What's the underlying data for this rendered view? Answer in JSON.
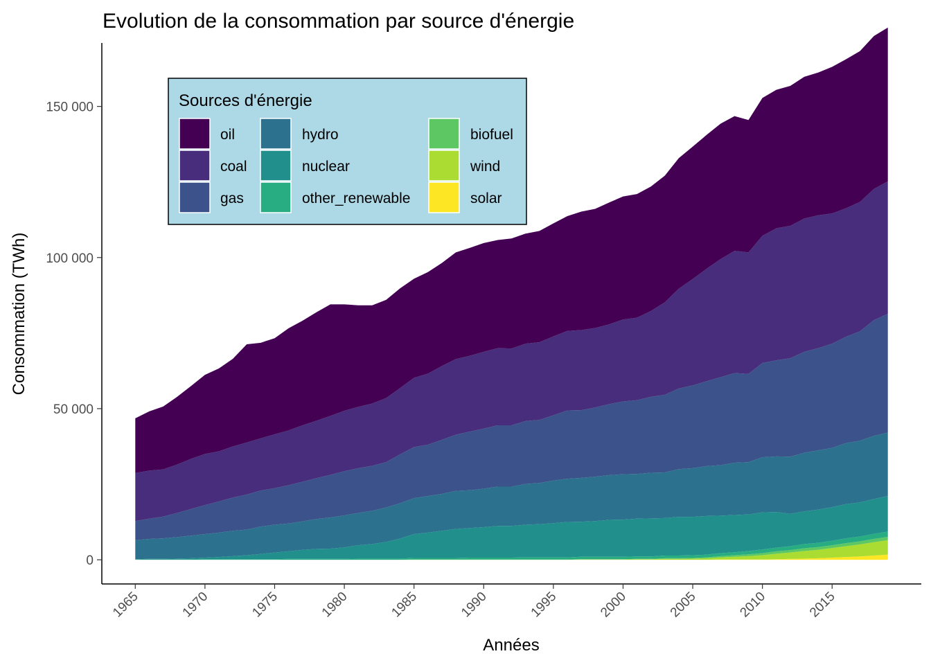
{
  "chart_data": {
    "type": "area",
    "stacked": true,
    "title": "Evolution de la consommation par source d'énergie",
    "xlabel": "Années",
    "ylabel": "Consommation (TWh)",
    "xlim": [
      1962.6,
      2021.4
    ],
    "ylim": [
      -8000,
      171000
    ],
    "x_ticks": [
      1965,
      1970,
      1975,
      1980,
      1985,
      1990,
      1995,
      2000,
      2005,
      2010,
      2015
    ],
    "y_ticks": [
      0,
      50000,
      100000,
      150000
    ],
    "y_tick_labels": [
      "0",
      "50 000",
      "100 000",
      "150 000"
    ],
    "grid": false,
    "legend": {
      "title": "Sources d'énergie",
      "position": "top-left",
      "background": "#add8e6",
      "columns": 3
    },
    "stack_order": [
      "solar",
      "wind",
      "biofuel",
      "other_renewable",
      "nuclear",
      "hydro",
      "gas",
      "coal",
      "oil"
    ],
    "x": [
      1965,
      1966,
      1967,
      1968,
      1969,
      1970,
      1971,
      1972,
      1973,
      1974,
      1975,
      1976,
      1977,
      1978,
      1979,
      1980,
      1981,
      1982,
      1983,
      1984,
      1985,
      1986,
      1987,
      1988,
      1989,
      1990,
      1991,
      1992,
      1993,
      1994,
      1995,
      1996,
      1997,
      1998,
      1999,
      2000,
      2001,
      2002,
      2003,
      2004,
      2005,
      2006,
      2007,
      2008,
      2009,
      2010,
      2011,
      2012,
      2013,
      2014,
      2015,
      2016,
      2017,
      2018,
      2019
    ],
    "series": [
      {
        "name": "oil",
        "color": "#440154",
        "values": [
          18100,
          19600,
          20800,
          22400,
          24100,
          26200,
          27400,
          29000,
          32500,
          31600,
          31800,
          33800,
          34600,
          35900,
          36900,
          35200,
          33600,
          32500,
          32500,
          33000,
          32800,
          33600,
          34100,
          35300,
          35700,
          36000,
          35800,
          36400,
          36400,
          36800,
          37400,
          38000,
          39200,
          39400,
          40300,
          40700,
          40900,
          41200,
          41900,
          43200,
          43800,
          44300,
          44800,
          44600,
          43800,
          45600,
          45800,
          46300,
          46900,
          47200,
          48500,
          49300,
          49900,
          50600,
          50900
        ]
      },
      {
        "name": "coal",
        "color": "#472d7b",
        "values": [
          15900,
          15900,
          15600,
          16000,
          16600,
          16900,
          16600,
          16900,
          17200,
          17300,
          17800,
          18100,
          18700,
          19000,
          19500,
          20000,
          20300,
          20600,
          21200,
          21900,
          22900,
          23500,
          24400,
          25000,
          25100,
          25400,
          25500,
          25400,
          25600,
          25700,
          26100,
          26300,
          26500,
          26300,
          26400,
          27100,
          27300,
          28400,
          30600,
          33000,
          35200,
          37200,
          39100,
          40400,
          40200,
          42100,
          43700,
          43800,
          44100,
          44000,
          43100,
          42500,
          42800,
          43400,
          43800
        ]
      },
      {
        "name": "gas",
        "color": "#3b528b",
        "values": [
          6300,
          6700,
          7200,
          8000,
          8800,
          9600,
          10300,
          11000,
          11600,
          11900,
          12100,
          12700,
          13100,
          13500,
          14100,
          14600,
          14800,
          14900,
          15000,
          16200,
          16900,
          17000,
          17900,
          18600,
          19400,
          19900,
          20300,
          20300,
          20800,
          20900,
          21600,
          22600,
          22400,
          22900,
          23500,
          24100,
          24400,
          25100,
          25700,
          26700,
          27400,
          28100,
          29100,
          29700,
          29200,
          31200,
          31800,
          32600,
          33400,
          33800,
          34500,
          35200,
          36200,
          38300,
          39300
        ]
      },
      {
        "name": "hydro",
        "color": "#2c728e",
        "values": [
          6300,
          6600,
          6800,
          7100,
          7500,
          7800,
          8100,
          8400,
          8500,
          9100,
          9200,
          9200,
          9400,
          9900,
          10300,
          10600,
          10700,
          11000,
          11400,
          11700,
          11900,
          12100,
          12200,
          12600,
          12500,
          12700,
          13000,
          13000,
          13500,
          13600,
          14100,
          14300,
          14500,
          14700,
          14800,
          15000,
          14800,
          15100,
          15100,
          15800,
          16100,
          16500,
          16700,
          17300,
          17300,
          18200,
          18400,
          18900,
          19400,
          19600,
          19600,
          20200,
          20400,
          20900,
          21000
        ]
      },
      {
        "name": "nuclear",
        "color": "#21908d",
        "values": [
          100,
          200,
          200,
          300,
          400,
          500,
          700,
          1000,
          1300,
          1700,
          2200,
          2500,
          3000,
          3300,
          3400,
          3800,
          4400,
          4800,
          5500,
          6600,
          7900,
          8400,
          9000,
          9600,
          9800,
          10100,
          10500,
          10500,
          10800,
          11000,
          11300,
          11700,
          11600,
          11800,
          12200,
          12300,
          12500,
          12600,
          12400,
          12800,
          12700,
          12800,
          12400,
          12300,
          12100,
          12300,
          11800,
          10700,
          10800,
          11000,
          11100,
          11300,
          11300,
          11500,
          11800
        ]
      },
      {
        "name": "other_renewable",
        "color": "#27ad81",
        "values": [
          100,
          100,
          100,
          100,
          100,
          200,
          200,
          200,
          200,
          200,
          200,
          300,
          300,
          300,
          300,
          300,
          400,
          400,
          400,
          400,
          500,
          500,
          500,
          500,
          600,
          600,
          600,
          600,
          700,
          700,
          700,
          700,
          800,
          800,
          800,
          800,
          800,
          800,
          900,
          900,
          900,
          900,
          1000,
          1000,
          1100,
          1200,
          1200,
          1300,
          1400,
          1400,
          1500,
          1600,
          1600,
          1700,
          1700
        ]
      },
      {
        "name": "biofuel",
        "color": "#5dc863",
        "values": [
          0,
          0,
          0,
          0,
          0,
          0,
          0,
          0,
          0,
          0,
          0,
          0,
          0,
          0,
          0,
          0,
          0,
          0,
          0,
          0,
          100,
          100,
          100,
          100,
          100,
          100,
          100,
          100,
          100,
          100,
          100,
          100,
          100,
          100,
          100,
          100,
          100,
          100,
          200,
          200,
          200,
          300,
          400,
          500,
          600,
          700,
          800,
          800,
          900,
          900,
          900,
          1000,
          1000,
          1100,
          1100
        ]
      },
      {
        "name": "wind",
        "color": "#aadc32",
        "values": [
          0,
          0,
          0,
          0,
          0,
          0,
          0,
          0,
          0,
          0,
          0,
          0,
          0,
          0,
          0,
          0,
          0,
          0,
          0,
          0,
          0,
          0,
          0,
          0,
          0,
          0,
          0,
          0,
          0,
          0,
          0,
          0,
          100,
          100,
          100,
          100,
          200,
          200,
          300,
          300,
          400,
          500,
          700,
          900,
          1100,
          1400,
          1800,
          2100,
          2500,
          2800,
          3200,
          3600,
          4000,
          4400,
          4800
        ]
      },
      {
        "name": "solar",
        "color": "#fde725",
        "values": [
          0,
          0,
          0,
          0,
          0,
          0,
          0,
          0,
          0,
          0,
          0,
          0,
          0,
          0,
          0,
          0,
          0,
          0,
          0,
          0,
          0,
          0,
          0,
          0,
          0,
          0,
          0,
          0,
          0,
          0,
          0,
          0,
          0,
          0,
          0,
          0,
          0,
          0,
          0,
          0,
          0,
          0,
          100,
          100,
          100,
          100,
          200,
          300,
          400,
          500,
          700,
          900,
          1100,
          1400,
          1700
        ]
      }
    ]
  }
}
